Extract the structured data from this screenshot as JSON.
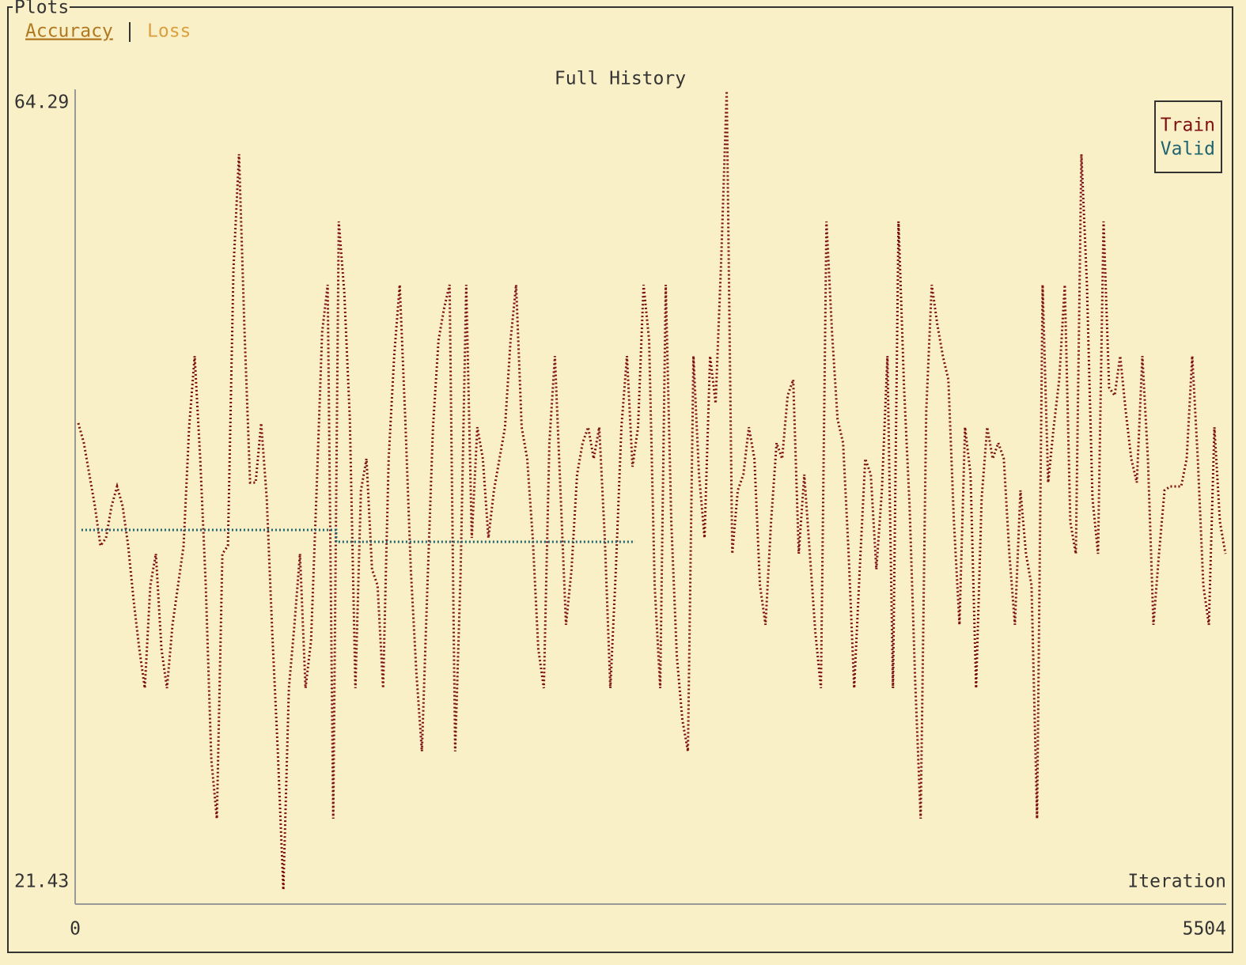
{
  "panel_title": "Plots",
  "tabs": [
    "Accuracy",
    "Loss"
  ],
  "chart_data": {
    "type": "line",
    "title": "Full History",
    "xlabel": "Iteration",
    "xlim": [
      0,
      5504
    ],
    "xticks": [
      0,
      5504
    ],
    "ylim": [
      21.43,
      64.29
    ],
    "yticks": [
      21.43,
      64.29
    ],
    "legend": "upper right",
    "series": [
      {
        "name": "Train",
        "color": "#7d1010",
        "x": [
          15,
          41.5,
          68,
          94.5,
          121,
          147.5,
          174,
          200.5,
          227,
          253.5,
          280,
          306.5,
          333,
          359.5,
          386,
          412.5,
          439,
          465.5,
          492,
          518.5,
          545,
          571.5,
          598,
          624.5,
          651,
          677.5,
          704,
          730.5,
          757,
          783.5,
          810,
          836.5,
          863,
          889.5,
          916,
          942.5,
          969,
          995.5,
          1022,
          1048.5,
          1075,
          1101.5,
          1128,
          1154.5,
          1181,
          1207.5,
          1234,
          1260.5,
          1287,
          1313.5,
          1340,
          1366.5,
          1393,
          1419.5,
          1446,
          1472.5,
          1499,
          1525.5,
          1552,
          1578.5,
          1605,
          1631.5,
          1658,
          1684.5,
          1711,
          1737.5,
          1764,
          1790.5,
          1817,
          1843.5,
          1870,
          1896.5,
          1923,
          1949.5,
          1976,
          2002.5,
          2029,
          2055.5,
          2082,
          2108.5,
          2135,
          2161.5,
          2188,
          2214.5,
          2241,
          2267.5,
          2294,
          2320.5,
          2347,
          2373.5,
          2400,
          2426.5,
          2453,
          2479.5,
          2506,
          2532.5,
          2559,
          2585.5,
          2612,
          2638.5,
          2665,
          2691.5,
          2718,
          2744.5,
          2771,
          2797.5,
          2824,
          2850.5,
          2877,
          2903.5,
          2930,
          2956.5,
          2983,
          3009.5,
          3036,
          3062.5,
          3089,
          3115.5,
          3142,
          3168.5,
          3195,
          3221.5,
          3248,
          3274.5,
          3301,
          3327.5,
          3354,
          3380.5,
          3407,
          3433.5,
          3460,
          3486.5,
          3513,
          3539.5,
          3566,
          3592.5,
          3619,
          3645.5,
          3672,
          3698.5,
          3725,
          3751.5,
          3778,
          3804.5,
          3831,
          3857.5,
          3884,
          3910.5,
          3937,
          3963.5,
          3990,
          4016.5,
          4043,
          4069.5,
          4096,
          4122.5,
          4149,
          4175.5,
          4202,
          4228.5,
          4255,
          4281.5,
          4308,
          4334.5,
          4361,
          4387.5,
          4414,
          4440.5,
          4467,
          4493.5,
          4520,
          4546.5,
          4573,
          4599.5,
          4626,
          4652.5,
          4679,
          4705.5,
          4732,
          4758.5,
          4785,
          4811.5,
          4838,
          4864.5,
          4891,
          4917.5,
          4944,
          4970.5,
          4997,
          5023.5,
          5050,
          5076.5,
          5103,
          5129.5,
          5156,
          5182.5,
          5209,
          5235.5,
          5262,
          5288.5,
          5315,
          5341.5,
          5368,
          5394.5,
          5421,
          5447.5,
          5474,
          5500.5
        ],
        "values": [
          46.47,
          45.41,
          43.71,
          42.01,
          39.89,
          40.31,
          42.01,
          43.07,
          42.01,
          39.89,
          36.92,
          34.37,
          32.25,
          37.77,
          39.46,
          34.37,
          32.25,
          35.65,
          37.77,
          39.89,
          46.25,
          50.07,
          44.56,
          37.77,
          28.43,
          25.25,
          39.46,
          39.89,
          54.74,
          60.9,
          51.35,
          43.28,
          43.28,
          46.47,
          42.44,
          35.22,
          28.86,
          21.43,
          32.25,
          35.65,
          39.46,
          32.25,
          34.8,
          42.86,
          51.35,
          53.89,
          25.25,
          57.29,
          53.47,
          46.68,
          32.25,
          42.86,
          44.56,
          38.62,
          37.77,
          32.25,
          44.56,
          50.07,
          53.89,
          46.68,
          38.62,
          33.1,
          28.86,
          37.77,
          46.25,
          50.92,
          52.62,
          53.89,
          28.86,
          38.62,
          53.89,
          40.31,
          46.25,
          44.56,
          40.31,
          42.86,
          44.56,
          46.25,
          50.92,
          53.89,
          46.25,
          44.56,
          40.31,
          34.37,
          32.25,
          45.41,
          50.07,
          42.86,
          35.65,
          38.62,
          43.71,
          45.41,
          46.25,
          44.56,
          46.25,
          40.31,
          32.25,
          38.62,
          46.25,
          50.07,
          44.13,
          46.25,
          53.89,
          50.92,
          37.77,
          32.25,
          53.89,
          41.16,
          33.95,
          30.55,
          28.86,
          50.07,
          43.71,
          40.31,
          50.07,
          47.53,
          55.17,
          64.29,
          39.46,
          42.86,
          43.71,
          46.25,
          44.56,
          37.77,
          35.65,
          41.16,
          45.41,
          44.56,
          47.95,
          48.8,
          39.46,
          43.71,
          39.46,
          35.22,
          32.25,
          57.29,
          51.35,
          46.68,
          45.41,
          39.46,
          32.25,
          38.62,
          44.56,
          43.71,
          38.62,
          42.86,
          50.07,
          32.25,
          57.29,
          48.38,
          42.01,
          32.68,
          25.25,
          47.1,
          53.89,
          51.77,
          50.07,
          48.8,
          41.16,
          35.65,
          46.25,
          43.71,
          32.25,
          42.44,
          46.25,
          44.56,
          45.41,
          44.56,
          39.46,
          35.65,
          42.86,
          39.46,
          37.77,
          25.25,
          53.89,
          43.28,
          46.25,
          48.8,
          53.89,
          41.16,
          39.46,
          60.9,
          53.89,
          42.44,
          39.46,
          57.29,
          48.38,
          47.95,
          50.07,
          47.1,
          44.56,
          43.28,
          50.07,
          44.56,
          35.65,
          39.46,
          42.86,
          43.07,
          43.07,
          43.07,
          44.56,
          50.07,
          44.56,
          37.77,
          35.65,
          46.25,
          41.16,
          39.46
        ]
      },
      {
        "name": "Valid",
        "color": "#1d6470",
        "x": [
          30,
          1248,
          1248,
          2678
        ],
        "values": [
          40.74,
          40.74,
          40.1,
          40.1
        ]
      }
    ]
  }
}
